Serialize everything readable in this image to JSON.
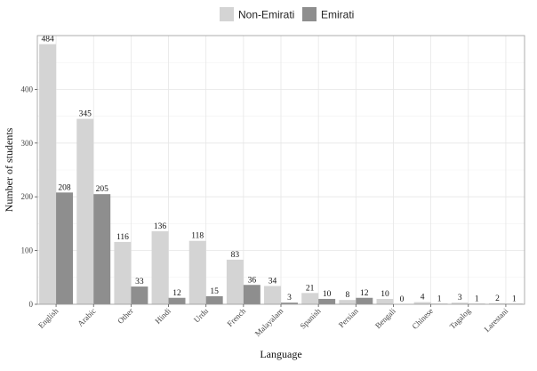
{
  "colors": {
    "non_emirati": "#d4d4d4",
    "emirati": "#8e8e8e",
    "grid": "#e6e6e6",
    "panel_border": "#9a9a9a"
  },
  "chart_data": {
    "type": "bar",
    "xlabel": "Language",
    "ylabel": "Number of students",
    "ylim": [
      0,
      500
    ],
    "yticks": [
      0,
      100,
      200,
      300,
      400
    ],
    "grid": true,
    "legend_position": "top",
    "categories": [
      "English",
      "Arabic",
      "Other",
      "Hindi",
      "Urdu",
      "French",
      "Malayalam",
      "Spanish",
      "Persian",
      "Bengali",
      "Chinese",
      "Tagalog",
      "Larestani"
    ],
    "series": [
      {
        "name": "Non-Emirati",
        "color": "#d4d4d4",
        "values": [
          484,
          345,
          116,
          136,
          118,
          83,
          34,
          21,
          8,
          10,
          4,
          3,
          2
        ]
      },
      {
        "name": "Emirati",
        "color": "#8e8e8e",
        "values": [
          208,
          205,
          33,
          12,
          15,
          36,
          3,
          10,
          12,
          0,
          1,
          1,
          1
        ]
      }
    ]
  }
}
